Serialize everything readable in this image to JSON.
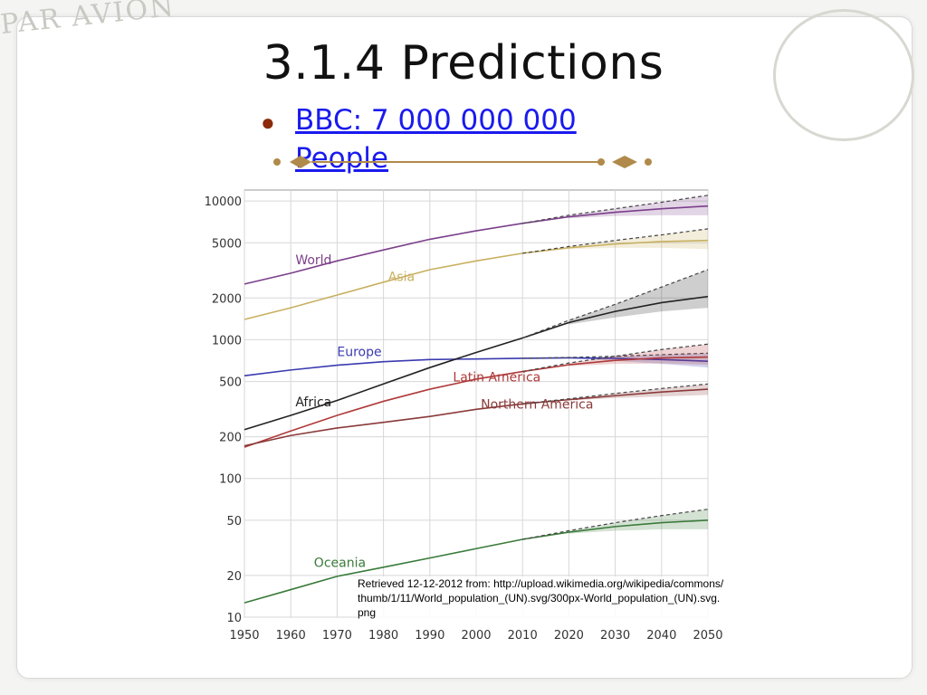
{
  "slide": {
    "title": "3.1.4 Predictions",
    "bullet_link": "BBC: 7 000 000 000 People",
    "citation": "Retrieved 12-12-2012 from: http://upload.wikimedia.org/wikipedia/commons/thumb/1/11/World_population_(UN).svg/300px-World_population_(UN).svg.png",
    "stamp_left": "PAR AVION",
    "colors": {
      "accent": "#8b2a0b",
      "link": "#1a1aee",
      "ornament": "#b08a4a"
    }
  },
  "chart_data": {
    "type": "line",
    "yscale": "log",
    "xlim": [
      1950,
      2050
    ],
    "ylim": [
      10,
      12000
    ],
    "x_ticks": [
      1950,
      1960,
      1970,
      1980,
      1990,
      2000,
      2010,
      2020,
      2030,
      2040,
      2050
    ],
    "y_ticks": [
      10,
      20,
      50,
      100,
      200,
      500,
      1000,
      2000,
      5000,
      10000
    ],
    "grid": true,
    "series": [
      {
        "name": "World",
        "color": "#7b3f8a",
        "x": [
          1950,
          1960,
          1970,
          1980,
          1990,
          2000,
          2010,
          2020,
          2030,
          2040,
          2050
        ],
        "y": [
          2520,
          3020,
          3700,
          4440,
          5300,
          6100,
          6900,
          7700,
          8300,
          8800,
          9200
        ],
        "projection_high": [
          7900,
          8800,
          9800,
          11000
        ],
        "projection_low": [
          7500,
          7800,
          7900,
          7900
        ]
      },
      {
        "name": "Asia",
        "color": "#c8b060",
        "x": [
          1950,
          1960,
          1970,
          1980,
          1990,
          2000,
          2010,
          2020,
          2030,
          2040,
          2050
        ],
        "y": [
          1400,
          1700,
          2100,
          2600,
          3200,
          3700,
          4200,
          4600,
          4900,
          5100,
          5200
        ],
        "projection_high": [
          4700,
          5200,
          5700,
          6300
        ],
        "projection_low": [
          4500,
          4600,
          4600,
          4500
        ]
      },
      {
        "name": "Europe",
        "color": "#3a3ab0",
        "x": [
          1950,
          1960,
          1970,
          1980,
          1990,
          2000,
          2010,
          2020,
          2030,
          2040,
          2050
        ],
        "y": [
          550,
          605,
          655,
          695,
          720,
          727,
          735,
          740,
          735,
          720,
          700
        ],
        "projection_high": [
          745,
          760,
          780,
          800
        ],
        "projection_low": [
          735,
          705,
          670,
          630
        ]
      },
      {
        "name": "Africa",
        "color": "#222222",
        "x": [
          1950,
          1960,
          1970,
          1980,
          1990,
          2000,
          2010,
          2020,
          2030,
          2040,
          2050
        ],
        "y": [
          225,
          285,
          365,
          480,
          630,
          810,
          1030,
          1330,
          1600,
          1850,
          2050
        ],
        "projection_high": [
          1380,
          1800,
          2400,
          3200
        ],
        "projection_low": [
          1290,
          1450,
          1600,
          1700
        ]
      },
      {
        "name": "Latin America",
        "color": "#b03a3a",
        "x": [
          1950,
          1960,
          1970,
          1980,
          1990,
          2000,
          2010,
          2020,
          2030,
          2040,
          2050
        ],
        "y": [
          168,
          220,
          285,
          360,
          440,
          520,
          590,
          660,
          710,
          740,
          750
        ],
        "projection_high": [
          680,
          760,
          850,
          930
        ],
        "projection_low": [
          645,
          670,
          675,
          660
        ]
      },
      {
        "name": "Northern America",
        "color": "#8a3a3a",
        "x": [
          1950,
          1960,
          1970,
          1980,
          1990,
          2000,
          2010,
          2020,
          2030,
          2040,
          2050
        ],
        "y": [
          172,
          204,
          231,
          254,
          280,
          315,
          345,
          370,
          395,
          420,
          440
        ],
        "projection_high": [
          375,
          410,
          445,
          480
        ],
        "projection_low": [
          365,
          380,
          390,
          400
        ]
      },
      {
        "name": "Oceania",
        "color": "#3a7a3a",
        "x": [
          1950,
          1960,
          1970,
          1980,
          1990,
          2000,
          2010,
          2020,
          2030,
          2040,
          2050
        ],
        "y": [
          12.7,
          15.8,
          19.7,
          22.9,
          26.7,
          31.2,
          36.4,
          41.0,
          45.0,
          48.0,
          50.0
        ],
        "projection_high": [
          42.0,
          48.0,
          54.0,
          60.0
        ],
        "projection_low": [
          40.0,
          42.0,
          43.0,
          43.0
        ]
      }
    ],
    "label_anchors": [
      {
        "name": "World",
        "x": 1961,
        "y": 3500
      },
      {
        "name": "Asia",
        "x": 1981,
        "y": 2650
      },
      {
        "name": "Europe",
        "x": 1970,
        "y": 760
      },
      {
        "name": "Africa",
        "x": 1961,
        "y": 330
      },
      {
        "name": "Latin America",
        "x": 1995,
        "y": 500
      },
      {
        "name": "Northern America",
        "x": 2001,
        "y": 320
      },
      {
        "name": "Oceania",
        "x": 1965,
        "y": 23
      }
    ]
  }
}
